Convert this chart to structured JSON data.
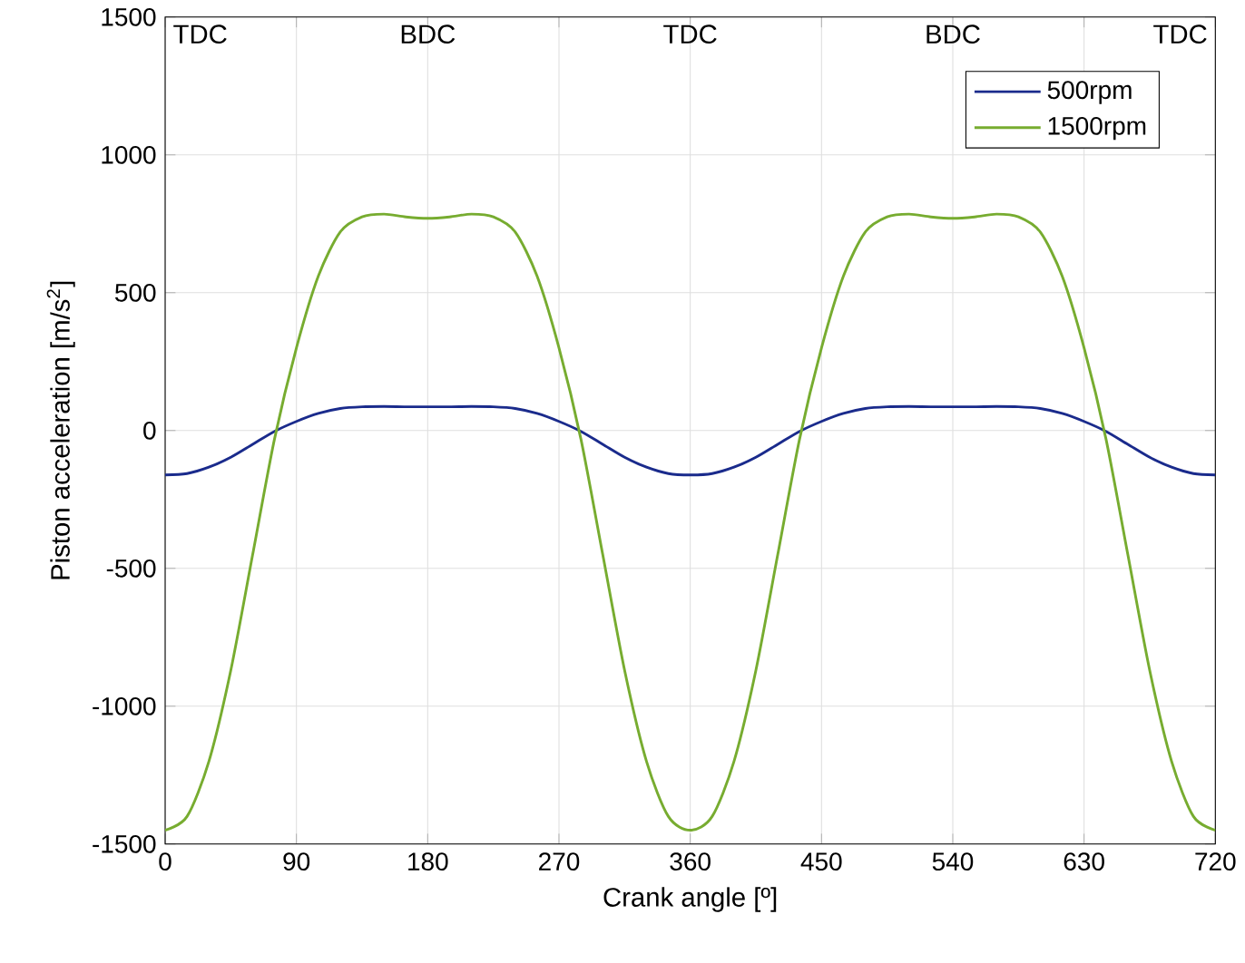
{
  "chart_data": {
    "type": "line",
    "xlabel": "Crank angle [º]",
    "ylabel": "Piston acceleration [m/s$^{2}$]",
    "x": [
      0,
      15,
      30,
      45,
      60,
      75,
      90,
      105,
      120,
      135,
      150,
      165,
      180,
      195,
      210,
      225,
      240,
      255,
      270,
      285,
      300,
      315,
      330,
      345,
      360,
      375,
      390,
      405,
      420,
      435,
      450,
      465,
      480,
      495,
      510,
      525,
      540,
      555,
      570,
      585,
      600,
      615,
      630,
      645,
      660,
      675,
      690,
      705,
      720
    ],
    "series": [
      {
        "name": "500rpm",
        "color": "#1a2b8c",
        "values": [
          -161,
          -156,
          -133,
          -97,
          -50,
          -3,
          33,
          62,
          80,
          86,
          87,
          86,
          86,
          86,
          87,
          86,
          80,
          62,
          33,
          -3,
          -50,
          -97,
          -133,
          -156,
          -161,
          -156,
          -133,
          -97,
          -50,
          -3,
          33,
          62,
          80,
          86,
          87,
          86,
          86,
          86,
          87,
          86,
          80,
          62,
          33,
          -3,
          -50,
          -97,
          -133,
          -156,
          -161
        ]
      },
      {
        "name": "1500rpm",
        "color": "#77ac30",
        "values": [
          -1450,
          -1400,
          -1200,
          -870,
          -450,
          -30,
          300,
          560,
          720,
          775,
          785,
          775,
          770,
          775,
          785,
          775,
          720,
          560,
          300,
          -30,
          -450,
          -870,
          -1200,
          -1400,
          -1450,
          -1400,
          -1200,
          -870,
          -450,
          -30,
          300,
          560,
          720,
          775,
          785,
          775,
          770,
          775,
          785,
          775,
          720,
          560,
          300,
          -30,
          -450,
          -870,
          -1200,
          -1400,
          -1450
        ]
      }
    ],
    "xlim": [
      0,
      720
    ],
    "xticks": [
      0,
      90,
      180,
      270,
      360,
      450,
      540,
      630,
      720
    ],
    "ylim": [
      -1500,
      1500
    ],
    "yticks": [
      -1500,
      -1000,
      -500,
      0,
      500,
      1000,
      1500
    ],
    "grid": true,
    "legend": "top right",
    "line_style": "solid",
    "marker": "none",
    "annotations": [
      "TDC",
      "BDC",
      "TDC",
      "BDC",
      "TDC"
    ]
  }
}
